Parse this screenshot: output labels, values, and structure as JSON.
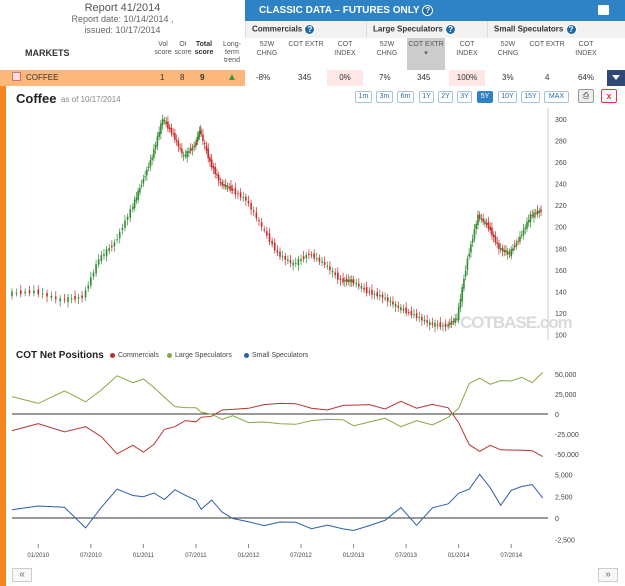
{
  "report": {
    "title": "Report 41/2014",
    "date_line": "Report date: 10/14/2014 ,",
    "issued_line": "issued: 10/17/2014"
  },
  "markets_header": {
    "label": "MARKETS",
    "vol": "Vol score",
    "oi": "OI score",
    "total": "Total score",
    "trend": "Long-term trend"
  },
  "classic_title": "CLASSIC DATA – FUTURES ONLY",
  "groups": [
    {
      "label": "Commercials"
    },
    {
      "label": "Large Speculators"
    },
    {
      "label": "Small Speculators"
    }
  ],
  "sub_headers": [
    {
      "label": "52W CHNG"
    },
    {
      "label": "COT EXTR"
    },
    {
      "label": "COT INDEX"
    },
    {
      "label": "52W CHNG"
    },
    {
      "label": "COT EXTR"
    },
    {
      "label": "COT INDEX"
    },
    {
      "label": "52W CHNG"
    },
    {
      "label": "COT EXTR"
    },
    {
      "label": "COT INDEX"
    }
  ],
  "row": {
    "market": "COFFEE",
    "vol": "1",
    "oi": "8",
    "total": "9",
    "values": [
      "-8%",
      "345",
      "0%",
      "7%",
      "345",
      "100%",
      "3%",
      "4",
      "64%"
    ]
  },
  "icons": {
    "help": "question-icon",
    "print": "printer-icon",
    "close": "close-icon",
    "trend": "arrow-up-icon",
    "dropdown": "triangle-down-icon",
    "prev": "double-chevron-left-icon",
    "next": "double-chevron-right-icon",
    "market_flag": "chart-icon"
  },
  "colors": {
    "blue": "#2e83c6",
    "orange": "#f6841f",
    "commercials": "#b83232",
    "large": "#88a843",
    "small": "#2e5ea8",
    "price_up": "#2e8b2e",
    "price_down": "#c82828"
  },
  "chart": {
    "title": "Coffee",
    "as_of": "as of 10/17/2014",
    "watermark": "COTBASE.com",
    "ranges": [
      "1m",
      "3m",
      "6m",
      "1Y",
      "2Y",
      "3Y",
      "5Y",
      "10Y",
      "15Y",
      "MAX"
    ],
    "active_range": "5Y"
  },
  "cot": {
    "title": "COT Net Positions",
    "legend": [
      "Commercials",
      "Large Speculators",
      "Small Speculators"
    ]
  },
  "x_ticks": [
    "01/2010",
    "07/2010",
    "01/2011",
    "07/2011",
    "01/2012",
    "07/2012",
    "01/2013",
    "07/2013",
    "01/2014",
    "07/2014"
  ],
  "chart_data": [
    {
      "type": "candlestick",
      "x_range": [
        "2009-10",
        "2014-10"
      ],
      "ylim": [
        95,
        310
      ],
      "yticks": [
        "100",
        "120",
        "140",
        "160",
        "180",
        "200",
        "220",
        "240",
        "260",
        "280",
        "300"
      ],
      "x": [
        2009.75,
        2010.0,
        2010.25,
        2010.45,
        2010.6,
        2010.75,
        2010.9,
        2011.0,
        2011.1,
        2011.2,
        2011.3,
        2011.4,
        2011.5,
        2011.55,
        2011.65,
        2011.75,
        2011.85,
        2012.0,
        2012.15,
        2012.3,
        2012.45,
        2012.6,
        2012.75,
        2012.9,
        2013.0,
        2013.15,
        2013.3,
        2013.45,
        2013.6,
        2013.75,
        2013.9,
        2014.0,
        2014.1,
        2014.2,
        2014.3,
        2014.4,
        2014.5,
        2014.6,
        2014.7,
        2014.8
      ],
      "values": [
        138,
        140,
        132,
        135,
        170,
        185,
        215,
        240,
        265,
        300,
        285,
        265,
        275,
        290,
        260,
        240,
        235,
        225,
        200,
        175,
        165,
        175,
        165,
        150,
        150,
        140,
        135,
        125,
        118,
        110,
        108,
        115,
        170,
        210,
        200,
        180,
        175,
        190,
        210,
        215
      ]
    },
    {
      "type": "line",
      "title": "COT Net Positions",
      "ylim": [
        -60000,
        60000
      ],
      "yticks": [
        "50,000",
        "25,000",
        "0",
        "-25,000",
        "-50,000"
      ],
      "series": [
        {
          "name": "Commercials",
          "values": [
            -18000,
            -12000,
            -25000,
            -15000,
            -30000,
            -48000,
            -40000,
            -45000,
            -38000,
            -22000,
            -15000,
            -10000,
            -8000,
            -5000,
            0,
            5000,
            3000,
            8000,
            10000,
            15000,
            12000,
            10000,
            5000,
            8000,
            12000,
            10000,
            8000,
            15000,
            10000,
            12000,
            5000,
            -10000,
            -40000,
            -45000,
            -40000,
            -42000,
            -45000,
            -48000,
            -45000,
            -55000
          ]
        },
        {
          "name": "Large Speculators",
          "values": [
            20000,
            15000,
            28000,
            18000,
            30000,
            45000,
            40000,
            42000,
            35000,
            20000,
            12000,
            8000,
            5000,
            3000,
            -2000,
            -5000,
            -3000,
            -8000,
            -10000,
            -15000,
            -12000,
            -10000,
            -5000,
            -8000,
            -12000,
            -10000,
            -8000,
            -15000,
            -10000,
            -12000,
            -5000,
            10000,
            38000,
            42000,
            38000,
            40000,
            43000,
            45000,
            42000,
            52000
          ]
        }
      ]
    },
    {
      "type": "line",
      "ylim": [
        -3000,
        6000
      ],
      "yticks": [
        "5,000",
        "2,500",
        "0",
        "-2,500"
      ],
      "series": [
        {
          "name": "Small Speculators",
          "values": [
            1500,
            1200,
            1600,
            -1500,
            1400,
            2800,
            2600,
            3000,
            2700,
            2500,
            2900,
            2800,
            1500,
            1000,
            2600,
            500,
            300,
            -800,
            -700,
            -1000,
            -500,
            -700,
            -1000,
            -900,
            -1800,
            -700,
            -800,
            1200,
            -300,
            1000,
            2000,
            2500,
            3500,
            4500,
            3500,
            2000,
            3000,
            4000,
            3500,
            2500
          ]
        }
      ]
    }
  ]
}
